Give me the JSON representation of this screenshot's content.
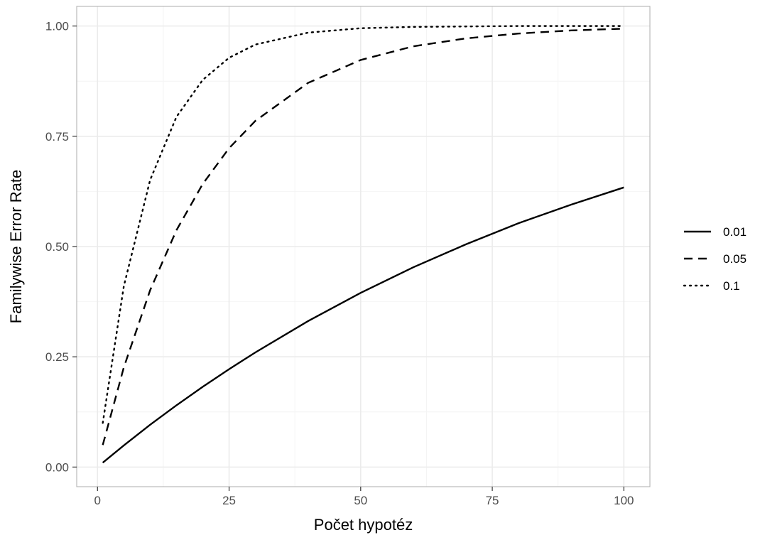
{
  "chart_data": {
    "type": "line",
    "xlabel": "Počet hypotéz",
    "ylabel": "Familywise Error Rate",
    "xlim": [
      -3.95,
      104.95
    ],
    "ylim": [
      -0.0445,
      1.0445
    ],
    "x_ticks": [
      0,
      25,
      50,
      75,
      100
    ],
    "x_tick_labels": [
      "0",
      "25",
      "50",
      "75",
      "100"
    ],
    "y_ticks": [
      0,
      0.25,
      0.5,
      0.75,
      1.0
    ],
    "y_tick_labels": [
      "0.00",
      "0.25",
      "0.50",
      "0.75",
      "1.00"
    ],
    "grid": true,
    "legend_position": "right",
    "x": [
      1,
      5,
      10,
      15,
      20,
      25,
      30,
      40,
      50,
      60,
      70,
      80,
      90,
      100
    ],
    "series": [
      {
        "name": "0.01",
        "linestyle": "solid",
        "values": [
          0.01,
          0.049,
          0.096,
          0.14,
          0.182,
          0.222,
          0.26,
          0.331,
          0.395,
          0.453,
          0.505,
          0.553,
          0.595,
          0.634
        ]
      },
      {
        "name": "0.05",
        "linestyle": "dashed",
        "values": [
          0.05,
          0.226,
          0.401,
          0.537,
          0.642,
          0.723,
          0.785,
          0.871,
          0.923,
          0.954,
          0.972,
          0.983,
          0.99,
          0.994
        ]
      },
      {
        "name": "0.1",
        "linestyle": "dotted",
        "values": [
          0.1,
          0.41,
          0.651,
          0.794,
          0.878,
          0.928,
          0.958,
          0.985,
          0.995,
          0.998,
          0.999,
          1.0,
          1.0,
          1.0
        ]
      }
    ],
    "colors": {
      "line": "#000000",
      "grid_major": "#ebebeb",
      "grid_minor": "#f4f4f4",
      "panel_border": "#b3b3b3",
      "tick_text": "#4d4d4d"
    }
  }
}
